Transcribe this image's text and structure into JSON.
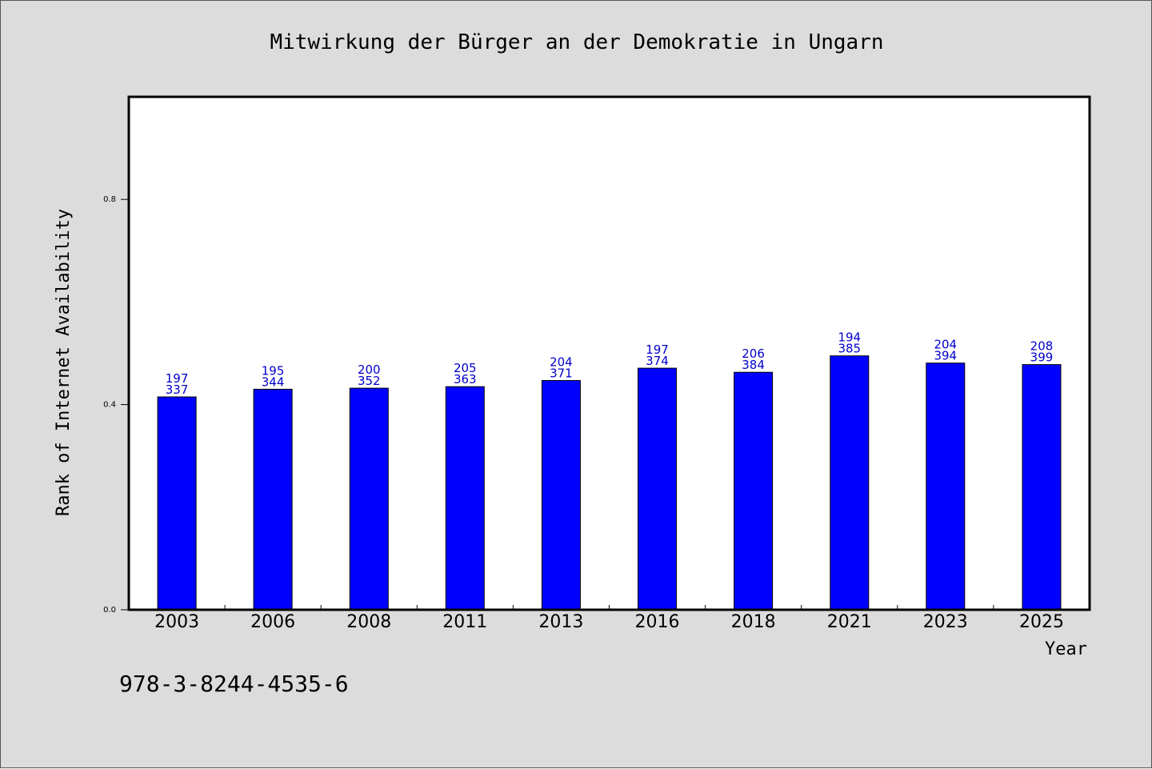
{
  "chart_data": {
    "type": "bar",
    "title": "Mitwirkung der Bürger an der Demokratie in Ungarn",
    "xlabel": "Year",
    "ylabel": "Rank of Internet Availability",
    "categories": [
      "2003",
      "2006",
      "2008",
      "2011",
      "2013",
      "2016",
      "2018",
      "2021",
      "2023",
      "2025"
    ],
    "values": [
      0.415,
      0.43,
      0.432,
      0.435,
      0.447,
      0.471,
      0.463,
      0.495,
      0.481,
      0.478
    ],
    "bar_labels": [
      [
        "197",
        "337"
      ],
      [
        "195",
        "344"
      ],
      [
        "200",
        "352"
      ],
      [
        "205",
        "363"
      ],
      [
        "204",
        "371"
      ],
      [
        "197",
        "374"
      ],
      [
        "206",
        "384"
      ],
      [
        "194",
        "385"
      ],
      [
        "204",
        "394"
      ],
      [
        "208",
        "399"
      ]
    ],
    "ylim": [
      0,
      1.0
    ],
    "yticks": [
      "0.0",
      "0.4",
      "0.8"
    ],
    "ytick_values": [
      0.0,
      0.4,
      0.8
    ],
    "grid": false,
    "legend": "none",
    "colors": {
      "bar": "#0000ff",
      "bar_label": "#0000cc",
      "background": "#dcdcdc",
      "plot_background": "#ffffff"
    }
  },
  "footer": {
    "isbn": "978-3-8244-4535-6"
  }
}
